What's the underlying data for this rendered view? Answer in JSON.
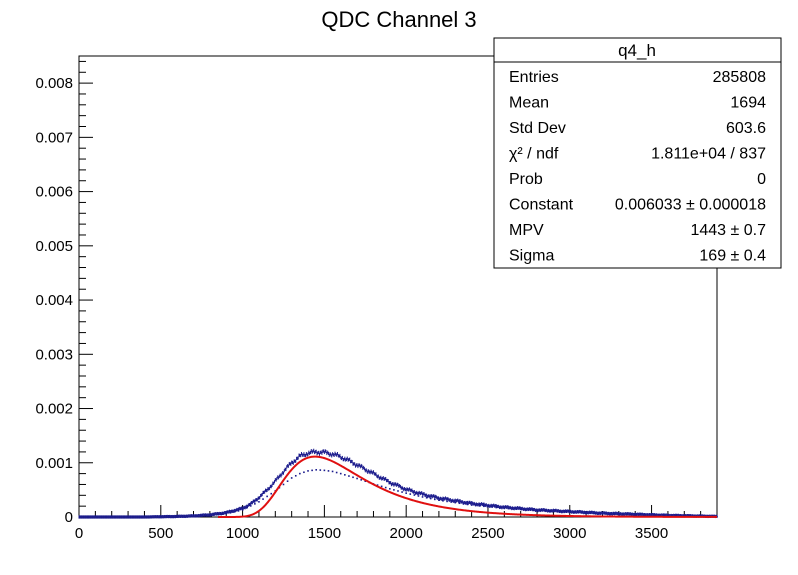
{
  "chart_data": {
    "type": "line",
    "title": "QDC Channel 3",
    "xlabel": "",
    "ylabel": "",
    "xlim": [
      0,
      3900
    ],
    "ylim": [
      0,
      0.0085
    ],
    "x_ticks": [
      0,
      500,
      1000,
      1500,
      2000,
      2500,
      3000,
      3500
    ],
    "y_ticks": [
      0,
      0.001,
      0.002,
      0.003,
      0.004,
      0.005,
      0.006,
      0.007,
      0.008
    ],
    "y_tick_labels": [
      "0",
      "0.001",
      "0.002",
      "0.003",
      "0.004",
      "0.005",
      "0.006",
      "0.007",
      "0.008"
    ],
    "grid": false,
    "colors": {
      "histogram": "#1a1a8c",
      "secondary_points": "#1a1a8c",
      "fit": "#e01010"
    },
    "series": [
      {
        "style": "histogram-points",
        "x": [
          0,
          200,
          400,
          600,
          700,
          800,
          900,
          1000,
          1050,
          1100,
          1150,
          1200,
          1250,
          1300,
          1350,
          1400,
          1450,
          1500,
          1550,
          1600,
          1650,
          1700,
          1800,
          1900,
          2000,
          2100,
          2200,
          2400,
          2600,
          2800,
          3000,
          3200,
          3400,
          3600,
          3900
        ],
        "y": [
          0,
          0,
          0,
          1e-05,
          2e-05,
          4e-05,
          8e-05,
          0.00016,
          0.00024,
          0.00036,
          0.0005,
          0.00066,
          0.00084,
          0.001,
          0.00112,
          0.00118,
          0.0012,
          0.00119,
          0.00116,
          0.00111,
          0.00104,
          0.00096,
          0.0008,
          0.00064,
          0.00051,
          0.00042,
          0.00035,
          0.00025,
          0.00018,
          0.00013,
          0.0001,
          7e-05,
          5e-05,
          3e-05,
          1e-05
        ]
      },
      {
        "style": "dotted-points",
        "x": [
          700,
          800,
          900,
          1000,
          1100,
          1200,
          1250,
          1300,
          1350,
          1400,
          1450,
          1500,
          1550,
          1600,
          1700,
          1800,
          1900,
          2000,
          2100,
          2200,
          2400,
          2600,
          2800,
          3000,
          3200,
          3400,
          3600,
          3900
        ],
        "y": [
          1e-05,
          3e-05,
          6e-05,
          0.00013,
          0.00028,
          0.00048,
          0.0006,
          0.00072,
          0.0008,
          0.00085,
          0.00087,
          0.00086,
          0.00084,
          0.0008,
          0.00071,
          0.00061,
          0.00052,
          0.00044,
          0.00037,
          0.00031,
          0.00022,
          0.00016,
          0.00012,
          9e-05,
          6e-05,
          4e-05,
          3e-05,
          1e-05
        ]
      }
    ],
    "fit": {
      "function": "landau",
      "constant": 0.006033,
      "mpv": 1443,
      "sigma": 169,
      "x_range": [
        850,
        3900
      ]
    }
  },
  "stats_box": {
    "name": "q4_h",
    "rows": [
      {
        "label": "Entries",
        "value": "285808"
      },
      {
        "label": "Mean",
        "value": "1694"
      },
      {
        "label": "Std Dev",
        "value": "603.6"
      },
      {
        "label": "χ² / ndf",
        "value": "1.811e+04 / 837"
      },
      {
        "label": "Prob",
        "value": "0"
      },
      {
        "label": "Constant",
        "value": "0.006033 ± 0.000018"
      },
      {
        "label": "MPV",
        "value": "1443 ± 0.7"
      },
      {
        "label": "Sigma",
        "value": "169 ± 0.4"
      }
    ]
  }
}
